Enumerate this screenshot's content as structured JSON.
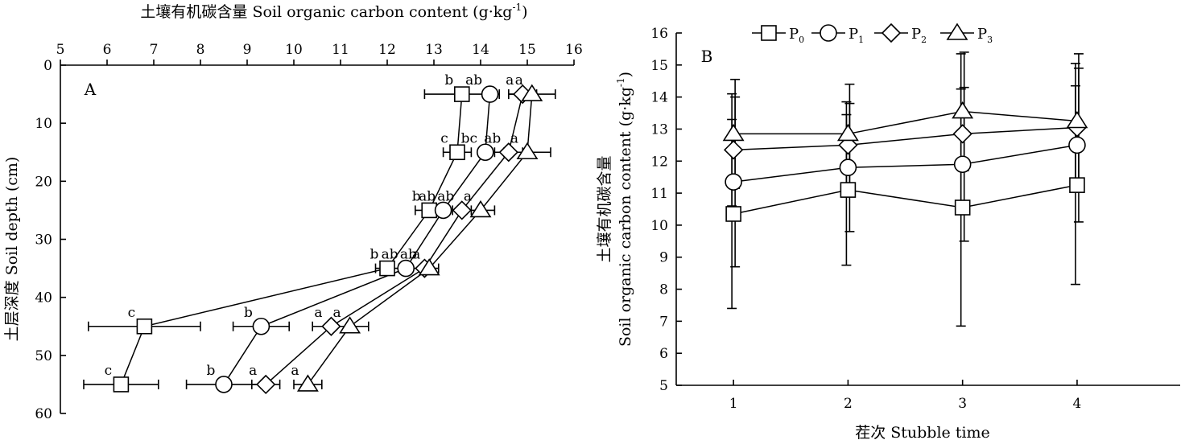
{
  "chart_data": [
    {
      "panel": "A",
      "type": "line",
      "title": "",
      "xlabel": "土壤有机碳含量 Soil organic carbon content (g·kg",
      "xlabel_sup": "-1",
      "xlabel_close": ")",
      "ylabel": "土层深度 Soil depth (cm)",
      "xlim": [
        5,
        16
      ],
      "ylim": [
        0,
        60
      ],
      "y_inverted": true,
      "x_axis_position": "top",
      "xticks": [
        5,
        6,
        7,
        8,
        9,
        10,
        11,
        12,
        13,
        14,
        15,
        16
      ],
      "yticks": [
        0,
        10,
        20,
        30,
        40,
        50,
        60
      ],
      "depths": [
        5,
        15,
        25,
        35,
        45,
        55
      ],
      "series": [
        {
          "name": "P0",
          "marker": "square",
          "x": [
            13.6,
            13.5,
            12.9,
            12.0,
            6.8,
            6.3
          ],
          "err": [
            0.8,
            0.3,
            0.3,
            0.25,
            1.2,
            0.8
          ],
          "labels": [
            "b",
            "c",
            "b",
            "b",
            "c",
            "c"
          ]
        },
        {
          "name": "P1",
          "marker": "circle",
          "x": [
            14.2,
            14.1,
            13.2,
            12.4,
            9.3,
            8.5
          ],
          "err": [
            0.0,
            0.0,
            0.0,
            0.0,
            0.6,
            0.8
          ],
          "labels": [
            "ab",
            "bc",
            "ab",
            "ab",
            "b",
            "b"
          ]
        },
        {
          "name": "P2",
          "marker": "diamond",
          "x": [
            14.9,
            14.6,
            13.6,
            12.8,
            10.8,
            9.4
          ],
          "err": [
            0.3,
            0.3,
            0.2,
            0.3,
            0.4,
            0.3
          ],
          "labels": [
            "a",
            "ab",
            "ab",
            "ab",
            "a",
            "a"
          ]
        },
        {
          "name": "P3",
          "marker": "triangle",
          "x": [
            15.1,
            15.0,
            14.0,
            12.9,
            11.2,
            10.3
          ],
          "err": [
            0.5,
            0.5,
            0.3,
            0.0,
            0.4,
            0.3
          ],
          "labels": [
            "a",
            "a",
            "a",
            "a",
            "a",
            "a"
          ]
        }
      ]
    },
    {
      "panel": "B",
      "type": "line",
      "title": "",
      "xlabel": "茬次 Stubble time",
      "ylabel_cn": "土壤有机碳含量",
      "ylabel_en": "Soil organic carbon content (g·kg",
      "ylabel_sup": "-1",
      "ylabel_close": ")",
      "xlim": [
        0.5,
        4.9
      ],
      "ylim": [
        5,
        16
      ],
      "x": [
        1,
        2,
        3,
        4
      ],
      "xticks": [
        1,
        2,
        3,
        4
      ],
      "yticks": [
        5,
        6,
        7,
        8,
        9,
        10,
        11,
        12,
        13,
        14,
        15,
        16
      ],
      "legend": "top",
      "series": [
        {
          "name": "P",
          "sub": "0",
          "marker": "square",
          "values": [
            10.35,
            11.1,
            10.55,
            11.25
          ],
          "err": [
            2.95,
            2.35,
            3.7,
            3.1
          ]
        },
        {
          "name": "P",
          "sub": "1",
          "marker": "circle",
          "values": [
            11.35,
            11.8,
            11.9,
            12.5
          ],
          "err": [
            2.65,
            2.0,
            2.4,
            2.4
          ]
        },
        {
          "name": "P",
          "sub": "2",
          "marker": "diamond",
          "values": [
            12.35,
            12.5,
            12.85,
            13.05
          ],
          "err": [
            1.75,
            1.35,
            2.5,
            2.0
          ]
        },
        {
          "name": "P",
          "sub": "3",
          "marker": "triangle",
          "values": [
            12.85,
            12.85,
            13.55,
            13.25
          ],
          "err": [
            1.7,
            1.55,
            1.85,
            2.1
          ]
        }
      ]
    }
  ]
}
